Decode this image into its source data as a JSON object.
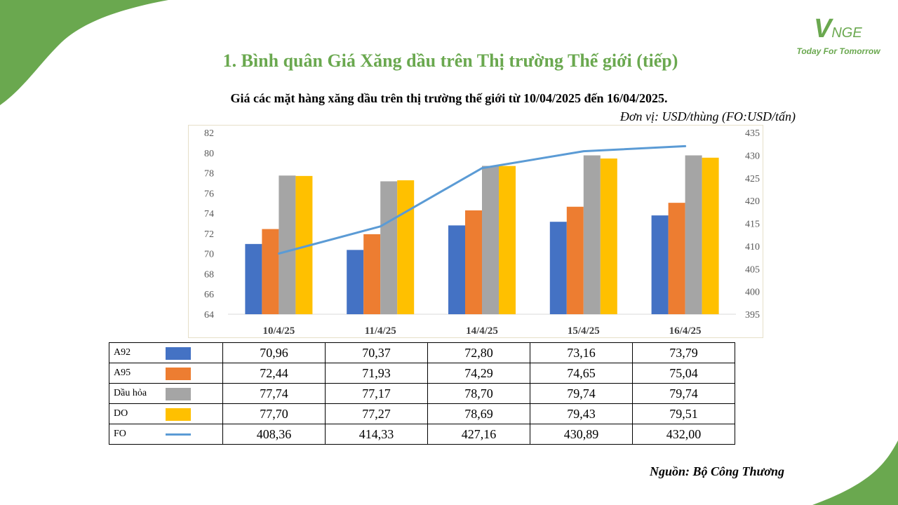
{
  "header": {
    "title": "1. Bình quân Giá Xăng dầu trên Thị trường Thế giới (tiếp)",
    "logo_mark": "VNGE",
    "logo_tagline": "Today For Tomorrow"
  },
  "chart_data": {
    "type": "bar",
    "title": "Giá các mặt hàng xăng dầu trên thị trường thế giới từ 10/04/2025 đến 16/04/2025.",
    "unit_note": "Đơn vị:  USD/thùng (FO:USD/tấn)",
    "categories": [
      "10/4/25",
      "11/4/25",
      "14/4/25",
      "15/4/25",
      "16/4/25"
    ],
    "ylim": [
      64,
      82
    ],
    "ylim_secondary": [
      395,
      435
    ],
    "yticks": [
      64,
      66,
      68,
      70,
      72,
      74,
      76,
      78,
      80,
      82
    ],
    "yticks_secondary": [
      395,
      400,
      405,
      410,
      415,
      420,
      425,
      430,
      435
    ],
    "grid": false,
    "legend": "table-below",
    "series": [
      {
        "name": "A92",
        "kind": "bar",
        "axis": "primary",
        "color": "#4472c4",
        "values": [
          70.96,
          70.37,
          72.8,
          73.16,
          73.79
        ],
        "display": [
          "70,96",
          "70,37",
          "72,80",
          "73,16",
          "73,79"
        ]
      },
      {
        "name": "A95",
        "kind": "bar",
        "axis": "primary",
        "color": "#ed7d31",
        "values": [
          72.44,
          71.93,
          74.29,
          74.65,
          75.04
        ],
        "display": [
          "72,44",
          "71,93",
          "74,29",
          "74,65",
          "75,04"
        ]
      },
      {
        "name": "Dầu hỏa",
        "kind": "bar",
        "axis": "primary",
        "color": "#a5a5a5",
        "values": [
          77.74,
          77.17,
          78.7,
          79.74,
          79.74
        ],
        "display": [
          "77,74",
          "77,17",
          "78,70",
          "79,74",
          "79,74"
        ]
      },
      {
        "name": "DO",
        "kind": "bar",
        "axis": "primary",
        "color": "#ffc000",
        "values": [
          77.7,
          77.27,
          78.69,
          79.43,
          79.51
        ],
        "display": [
          "77,70",
          "77,27",
          "78,69",
          "79,43",
          "79,51"
        ]
      },
      {
        "name": "FO",
        "kind": "line",
        "axis": "secondary",
        "color": "#5b9bd5",
        "values": [
          408.36,
          414.33,
          427.16,
          430.89,
          432.0
        ],
        "display": [
          "408,36",
          "414,33",
          "427,16",
          "430,89",
          "432,00"
        ]
      }
    ]
  },
  "footer": {
    "source": "Nguồn: Bộ Công Thương"
  }
}
